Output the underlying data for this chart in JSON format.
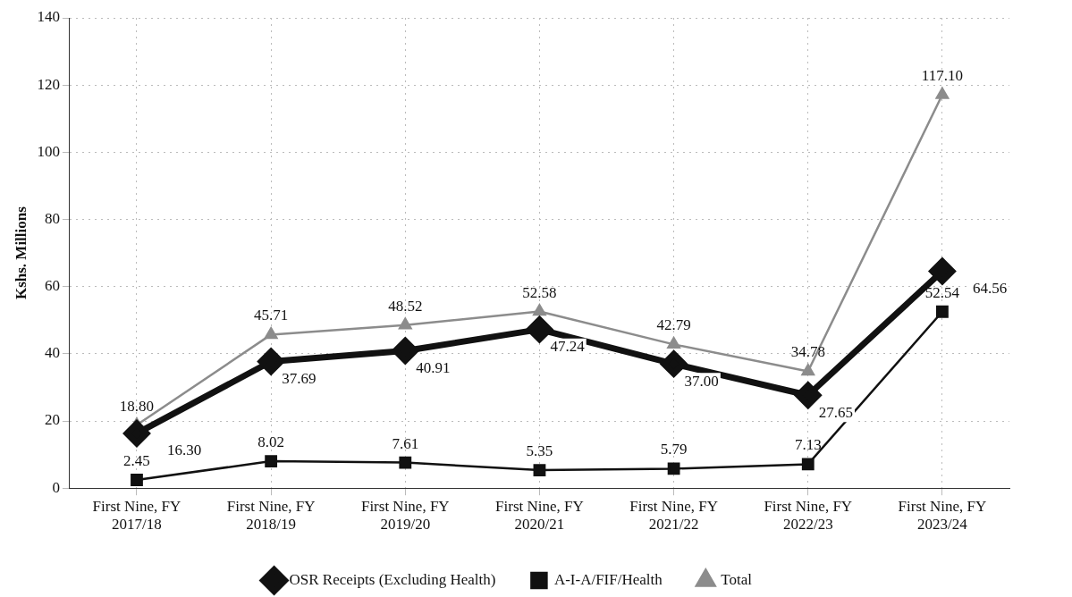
{
  "chart_data": {
    "type": "line",
    "ylabel": "Kshs. Millions",
    "categories": [
      "First Nine, FY 2017/18",
      "First Nine, FY 2018/19",
      "First Nine, FY 2019/20",
      "First Nine, FY 2020/21",
      "First Nine, FY 2021/22",
      "First Nine, FY 2022/23",
      "First Nine, FY 2023/24"
    ],
    "series": [
      {
        "name": "OSR Receipts (Excluding Health)",
        "color": "#111111",
        "marker": "diamond",
        "values": [
          16.3,
          37.69,
          40.91,
          47.24,
          37.0,
          27.65,
          64.56
        ],
        "value_labels": [
          "16.30",
          "37.69",
          "40.91",
          "47.24",
          "37.00",
          "27.65",
          "64.56"
        ]
      },
      {
        "name": "A-I-A/FIF/Health",
        "color": "#111111",
        "marker": "square",
        "values": [
          2.45,
          8.02,
          7.61,
          5.35,
          5.79,
          7.13,
          52.54
        ],
        "value_labels": [
          "2.45",
          "8.02",
          "7.61",
          "5.35",
          "5.79",
          "7.13",
          "52.54"
        ]
      },
      {
        "name": "Total",
        "color": "#8c8c8c",
        "marker": "triangle",
        "values": [
          18.8,
          45.71,
          48.52,
          52.58,
          42.79,
          34.78,
          117.1
        ],
        "value_labels": [
          "18.80",
          "45.71",
          "48.52",
          "52.58",
          "42.79",
          "34.78",
          "117.10"
        ]
      }
    ],
    "ylim": [
      0,
      140
    ],
    "yticks": [
      0,
      20,
      40,
      60,
      80,
      100,
      120,
      140
    ],
    "grid": true,
    "legend": "bottom",
    "line_style": "solid"
  }
}
